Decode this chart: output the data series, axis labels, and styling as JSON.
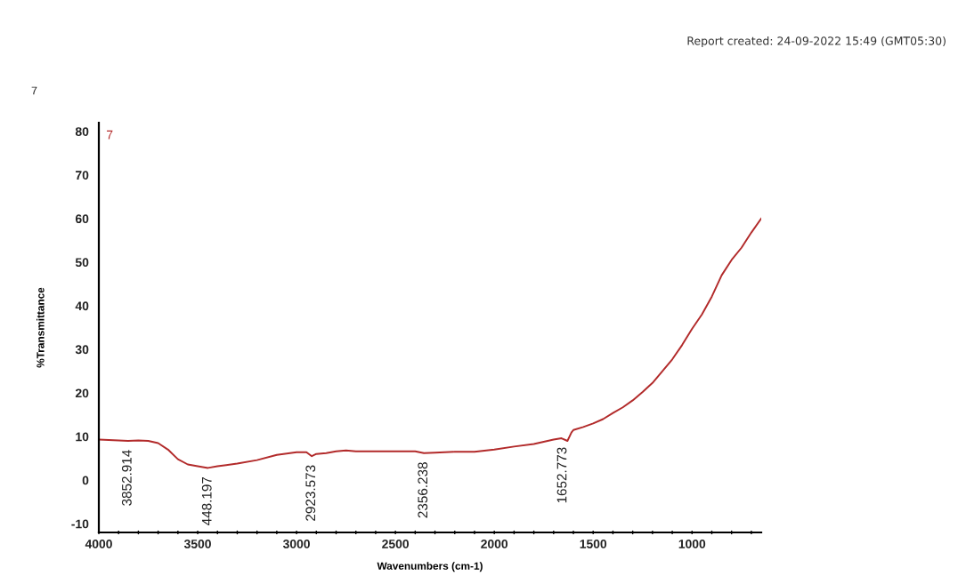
{
  "chart_data": {
    "type": "line",
    "title": "7",
    "xlabel": "Wavenumbers (cm-1)",
    "ylabel": "%Transmittance",
    "x": [
      4000,
      3950,
      3900,
      3852,
      3800,
      3750,
      3700,
      3650,
      3600,
      3550,
      3500,
      3448,
      3400,
      3300,
      3200,
      3100,
      3000,
      2950,
      2923,
      2900,
      2850,
      2800,
      2750,
      2700,
      2600,
      2500,
      2400,
      2356,
      2300,
      2200,
      2100,
      2000,
      1900,
      1800,
      1700,
      1660,
      1630,
      1610,
      1600,
      1550,
      1500,
      1450,
      1400,
      1350,
      1300,
      1250,
      1200,
      1150,
      1100,
      1050,
      1000,
      950,
      900,
      850,
      800,
      750,
      700,
      650
    ],
    "series": [
      {
        "name": "7",
        "color": "#b22a2a",
        "values": [
          9.3,
          9.2,
          9.1,
          9.0,
          9.1,
          9.0,
          8.5,
          7.0,
          4.8,
          3.6,
          3.2,
          2.8,
          3.2,
          3.8,
          4.6,
          5.8,
          6.4,
          6.4,
          5.5,
          6.0,
          6.2,
          6.6,
          6.8,
          6.6,
          6.6,
          6.6,
          6.6,
          6.2,
          6.3,
          6.5,
          6.5,
          7.0,
          7.7,
          8.3,
          9.3,
          9.6,
          9.0,
          10.9,
          11.5,
          12.2,
          13.0,
          14.0,
          15.4,
          16.7,
          18.3,
          20.2,
          22.3,
          25.0,
          27.7,
          31.0,
          34.7,
          38.0,
          42.1,
          47.0,
          50.5,
          53.3,
          56.8,
          60.0
        ]
      }
    ],
    "xlim": [
      4000,
      650
    ],
    "ylim": [
      -12,
      82
    ],
    "xticks": [
      4000,
      {
        "value": 3900,
        "label": null
      },
      {
        "value": 3800,
        "label": null
      },
      {
        "value": 3700,
        "label": null
      },
      {
        "value": 3600,
        "label": null
      },
      3500,
      {
        "value": 3400,
        "label": null
      },
      {
        "value": 3300,
        "label": null
      },
      {
        "value": 3200,
        "label": null
      },
      {
        "value": 3100,
        "label": null
      },
      3000,
      {
        "value": 2900,
        "label": null
      },
      {
        "value": 2800,
        "label": null
      },
      {
        "value": 2700,
        "label": null
      },
      {
        "value": 2600,
        "label": null
      },
      2500,
      {
        "value": 2400,
        "label": null
      },
      {
        "value": 2300,
        "label": null
      },
      {
        "value": 2200,
        "label": null
      },
      {
        "value": 2100,
        "label": null
      },
      2000,
      {
        "value": 1900,
        "label": null
      },
      {
        "value": 1800,
        "label": null
      },
      {
        "value": 1700,
        "label": null
      },
      {
        "value": 1600,
        "label": null
      },
      1500,
      {
        "value": 1400,
        "label": null
      },
      {
        "value": 1300,
        "label": null
      },
      {
        "value": 1200,
        "label": null
      },
      {
        "value": 1100,
        "label": null
      },
      1000,
      {
        "value": 900,
        "label": null
      },
      {
        "value": 800,
        "label": null
      },
      {
        "value": 700,
        "label": null
      }
    ],
    "yticks": [
      -10,
      0,
      10,
      20,
      30,
      40,
      50,
      60,
      70,
      80
    ],
    "legend": "top left",
    "grid": false,
    "marker": "none",
    "line_style": "solid",
    "annotations": [
      "Report created: 24-09-2022 15:49 (GMT05:30)",
      {
        "text": "3852.914",
        "x": 3852.914,
        "y": 9.0
      },
      {
        "text": "448.197",
        "x": 3448.197,
        "y": 2.8
      },
      {
        "text": "2923.573",
        "x": 2923.573,
        "y": 5.5
      },
      {
        "text": "2356.238",
        "x": 2356.238,
        "y": 6.2
      },
      {
        "text": "1652.773",
        "x": 1652.773,
        "y": 9.6
      }
    ]
  }
}
